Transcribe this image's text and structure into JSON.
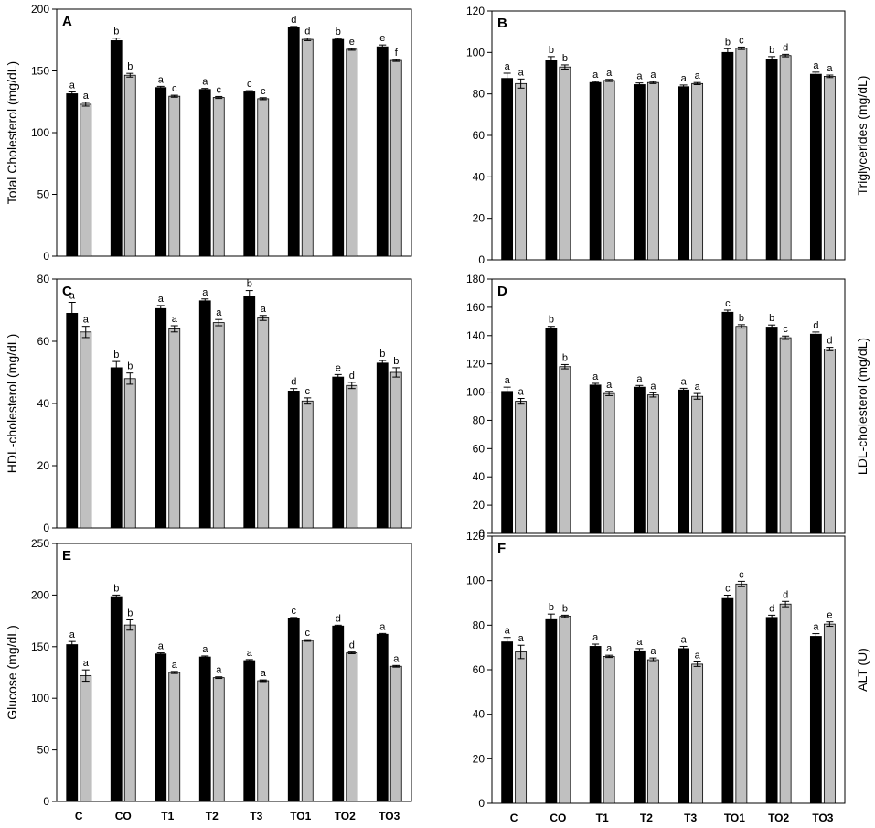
{
  "figure": {
    "series_colors": [
      "#000000",
      "#c0c0c0"
    ]
  },
  "chart_data": [
    {
      "type": "bar",
      "panel": "A",
      "ylabel": "Total Cholesterol (mg/dL)",
      "ylim": [
        0,
        200
      ],
      "yticks": [
        0,
        50,
        100,
        150,
        200
      ],
      "categories": [
        "C",
        "CO",
        "T1",
        "T2",
        "T3",
        "TO1",
        "TO2",
        "TO3"
      ],
      "show_categories": false,
      "series": [
        {
          "values": [
            131.5,
            174.5,
            136.5,
            135,
            133,
            185,
            175.5,
            169.5
          ],
          "errors": [
            1.5,
            2,
            1,
            0.8,
            1,
            1,
            0.8,
            1.5
          ],
          "labels": [
            "a",
            "b",
            "a",
            "a",
            "c",
            "d",
            "b",
            "e"
          ]
        },
        {
          "values": [
            123,
            146.5,
            129.5,
            128.5,
            127.5,
            175.5,
            167.5,
            158.5
          ],
          "errors": [
            1.5,
            1.5,
            0.8,
            0.8,
            0.8,
            1,
            0.8,
            0.8
          ],
          "labels": [
            "a",
            "b",
            "c",
            "c",
            "c",
            "d",
            "e",
            "f"
          ]
        }
      ]
    },
    {
      "type": "bar",
      "panel": "B",
      "ylabel": "Triglycerides (mg/dL)",
      "ylim": [
        0,
        120
      ],
      "yticks": [
        0,
        20,
        40,
        60,
        80,
        100,
        120
      ],
      "categories": [
        "C",
        "CO",
        "T1",
        "T2",
        "T3",
        "TO1",
        "TO2",
        "TO3"
      ],
      "show_categories": false,
      "series": [
        {
          "values": [
            87.5,
            96,
            85.5,
            84.5,
            83.5,
            100,
            96.5,
            89.5
          ],
          "errors": [
            2.5,
            2,
            0.5,
            0.8,
            0.8,
            1.8,
            1.5,
            1
          ],
          "labels": [
            "a",
            "b",
            "a",
            "a",
            "a",
            "b",
            "b",
            "a"
          ]
        },
        {
          "values": [
            85,
            93,
            86.5,
            85.5,
            85,
            102,
            98.5,
            88.5
          ],
          "errors": [
            2.2,
            1,
            0.5,
            0.5,
            0.5,
            0.6,
            0.6,
            0.6
          ],
          "labels": [
            "a",
            "b",
            "a",
            "a",
            "a",
            "c",
            "d",
            "a"
          ]
        }
      ]
    },
    {
      "type": "bar",
      "panel": "C",
      "ylabel": "HDL-cholesterol (mg/dL)",
      "ylim": [
        0,
        80
      ],
      "yticks": [
        0,
        20,
        40,
        60,
        80
      ],
      "categories": [
        "C",
        "CO",
        "T1",
        "T2",
        "T3",
        "TO1",
        "TO2",
        "TO3"
      ],
      "show_categories": false,
      "series": [
        {
          "values": [
            69,
            51.5,
            70.5,
            73,
            74.5,
            44,
            48.5,
            53
          ],
          "errors": [
            3.5,
            2,
            1,
            0.6,
            1.8,
            0.8,
            0.8,
            0.8
          ],
          "labels": [
            "a",
            "b",
            "a",
            "a",
            "b",
            "d",
            "e",
            "b"
          ]
        },
        {
          "values": [
            63,
            48,
            64,
            66,
            67.5,
            40.8,
            45.8,
            50
          ],
          "errors": [
            1.8,
            1.8,
            1,
            1,
            0.8,
            1,
            1,
            1.5
          ],
          "labels": [
            "a",
            "b",
            "a",
            "a",
            "a",
            "c",
            "d",
            "b"
          ]
        }
      ]
    },
    {
      "type": "bar",
      "panel": "D",
      "ylabel": "LDL-cholesterol (mg/dL)",
      "ylim": [
        0,
        180
      ],
      "yticks": [
        0,
        20,
        40,
        60,
        80,
        100,
        120,
        140,
        160,
        180
      ],
      "categories": [
        "C",
        "CO",
        "T1",
        "T2",
        "T3",
        "TO1",
        "TO2",
        "TO3"
      ],
      "show_categories": false,
      "series": [
        {
          "values": [
            100.5,
            145,
            105,
            103.5,
            101.5,
            156.5,
            146,
            141
          ],
          "errors": [
            3,
            1.5,
            1.2,
            1.2,
            1.2,
            1.5,
            1.5,
            1.5
          ],
          "labels": [
            "a",
            "b",
            "a",
            "a",
            "a",
            "c",
            "b",
            "d"
          ]
        },
        {
          "values": [
            93.5,
            118,
            99,
            98,
            97,
            146.5,
            138.5,
            130.5
          ],
          "errors": [
            2,
            1.5,
            1.5,
            1.5,
            2,
            1.2,
            1.2,
            1.2
          ],
          "labels": [
            "a",
            "b",
            "a",
            "a",
            "a",
            "b",
            "c",
            "d"
          ]
        }
      ]
    },
    {
      "type": "bar",
      "panel": "E",
      "ylabel": "Glucose (mg/dL)",
      "ylim": [
        0,
        250
      ],
      "yticks": [
        0,
        50,
        100,
        150,
        200,
        250
      ],
      "categories": [
        "C",
        "CO",
        "T1",
        "T2",
        "T3",
        "TO1",
        "TO2",
        "TO3"
      ],
      "show_categories": true,
      "series": [
        {
          "values": [
            152,
            198.5,
            143,
            140,
            136.5,
            177.5,
            170,
            162
          ],
          "errors": [
            3,
            1.5,
            1,
            1,
            1,
            0.8,
            0.8,
            0.8
          ],
          "labels": [
            "a",
            "b",
            "a",
            "a",
            "a",
            "c",
            "d",
            "a"
          ]
        },
        {
          "values": [
            122,
            171,
            125,
            120,
            117,
            156,
            144,
            131
          ],
          "errors": [
            5.5,
            5,
            1,
            0.8,
            0.8,
            0.8,
            0.8,
            0.8
          ],
          "labels": [
            "a",
            "b",
            "a",
            "a",
            "a",
            "c",
            "d",
            "a"
          ]
        }
      ]
    },
    {
      "type": "bar",
      "panel": "F",
      "ylabel": "ALT (U)",
      "ylim": [
        0,
        120
      ],
      "yticks": [
        0,
        20,
        40,
        60,
        80,
        100,
        120
      ],
      "categories": [
        "C",
        "CO",
        "T1",
        "T2",
        "T3",
        "TO1",
        "TO2",
        "TO3"
      ],
      "show_categories": true,
      "series": [
        {
          "values": [
            72.5,
            82.5,
            70.5,
            68.5,
            69.5,
            92,
            83.5,
            75
          ],
          "errors": [
            2,
            2.5,
            1,
            1,
            1,
            1.5,
            1,
            1.2
          ],
          "labels": [
            "a",
            "b",
            "a",
            "a",
            "a",
            "c",
            "d",
            "a"
          ]
        },
        {
          "values": [
            68,
            84,
            66,
            64.5,
            62.5,
            98.5,
            89.5,
            80.5
          ],
          "errors": [
            3,
            0.5,
            0.5,
            0.8,
            1,
            1.2,
            1.2,
            1
          ],
          "labels": [
            "a",
            "b",
            "a",
            "a",
            "a",
            "c",
            "d",
            "e"
          ]
        }
      ]
    }
  ]
}
